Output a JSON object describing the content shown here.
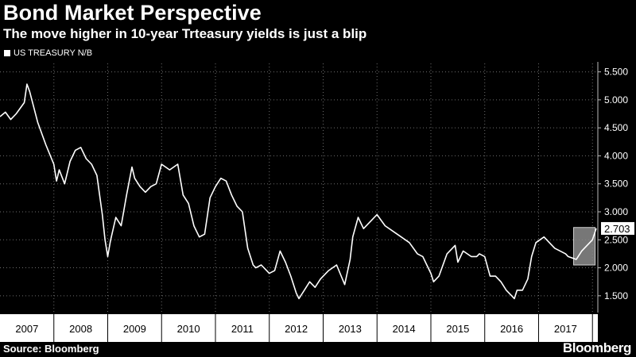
{
  "header": {
    "title": "Bond Market Perspective",
    "subtitle": "The move higher in 10-year Trteasury yields is just a blip"
  },
  "footer": {
    "source": "Source: Bloomberg",
    "brand": "Bloomberg"
  },
  "colors": {
    "background": "#000000",
    "line": "#ffffff",
    "axis_band": "#ffffff",
    "highlight_box": "#8c8c8c",
    "grid": "#6e6e6e"
  },
  "chart_data": {
    "type": "line",
    "title": "Bond Market Perspective",
    "subtitle": "The move higher in 10-year Trteasury yields is just a blip",
    "legend": [
      "US TREASURY N/B"
    ],
    "legend_position": "top-left",
    "y_axis_side": "right",
    "ylim": [
      1.2,
      5.65
    ],
    "yticks": [
      "1.500",
      "2.000",
      "2.500",
      "3.000",
      "3.500",
      "4.000",
      "4.500",
      "5.000",
      "5.500"
    ],
    "xlim": [
      2007.0,
      2018.1
    ],
    "x_tick_labels": [
      "2007",
      "2008",
      "2009",
      "2010",
      "2011",
      "2012",
      "2013",
      "2014",
      "2015",
      "2016",
      "2017"
    ],
    "grid": true,
    "last_value_label": "2.703",
    "highlight_region": {
      "x": [
        2017.65,
        2018.05
      ],
      "y": [
        2.05,
        2.72
      ]
    },
    "series": [
      {
        "name": "US TREASURY N/B",
        "x": [
          2007.0,
          2007.1,
          2007.2,
          2007.3,
          2007.45,
          2007.5,
          2007.55,
          2007.7,
          2007.85,
          2008.0,
          2008.05,
          2008.1,
          2008.2,
          2008.3,
          2008.4,
          2008.5,
          2008.6,
          2008.7,
          2008.8,
          2008.9,
          2008.95,
          2009.0,
          2009.05,
          2009.15,
          2009.25,
          2009.35,
          2009.45,
          2009.5,
          2009.6,
          2009.7,
          2009.8,
          2009.9,
          2010.0,
          2010.15,
          2010.3,
          2010.4,
          2010.5,
          2010.6,
          2010.7,
          2010.8,
          2010.9,
          2011.0,
          2011.1,
          2011.2,
          2011.3,
          2011.4,
          2011.5,
          2011.6,
          2011.7,
          2011.75,
          2011.85,
          2011.95,
          2012.0,
          2012.1,
          2012.2,
          2012.3,
          2012.4,
          2012.5,
          2012.55,
          2012.65,
          2012.75,
          2012.85,
          2012.95,
          2013.1,
          2013.25,
          2013.4,
          2013.5,
          2013.55,
          2013.65,
          2013.75,
          2013.85,
          2014.0,
          2014.15,
          2014.3,
          2014.45,
          2014.6,
          2014.75,
          2014.85,
          2014.9,
          2015.0,
          2015.05,
          2015.15,
          2015.3,
          2015.45,
          2015.5,
          2015.6,
          2015.75,
          2015.85,
          2015.9,
          2016.0,
          2016.1,
          2016.2,
          2016.3,
          2016.4,
          2016.5,
          2016.55,
          2016.6,
          2016.7,
          2016.8,
          2016.87,
          2016.95,
          2017.1,
          2017.2,
          2017.3,
          2017.4,
          2017.5,
          2017.55,
          2017.7,
          2017.8,
          2017.9,
          2018.0,
          2018.07
        ],
        "y": [
          4.7,
          4.78,
          4.65,
          4.75,
          4.95,
          5.28,
          5.15,
          4.6,
          4.2,
          3.85,
          3.55,
          3.75,
          3.5,
          3.9,
          4.1,
          4.15,
          3.95,
          3.85,
          3.65,
          2.95,
          2.5,
          2.2,
          2.48,
          2.9,
          2.75,
          3.3,
          3.8,
          3.6,
          3.45,
          3.35,
          3.45,
          3.5,
          3.85,
          3.75,
          3.85,
          3.3,
          3.15,
          2.75,
          2.55,
          2.6,
          3.25,
          3.45,
          3.6,
          3.55,
          3.3,
          3.1,
          3.0,
          2.35,
          2.05,
          2.0,
          2.05,
          1.95,
          1.9,
          1.95,
          2.3,
          2.1,
          1.85,
          1.55,
          1.45,
          1.6,
          1.75,
          1.65,
          1.8,
          1.95,
          2.05,
          1.7,
          2.15,
          2.55,
          2.9,
          2.7,
          2.8,
          2.95,
          2.75,
          2.65,
          2.55,
          2.45,
          2.25,
          2.2,
          2.1,
          1.9,
          1.75,
          1.85,
          2.25,
          2.4,
          2.1,
          2.3,
          2.2,
          2.2,
          2.25,
          2.2,
          1.85,
          1.85,
          1.75,
          1.6,
          1.5,
          1.45,
          1.6,
          1.6,
          1.8,
          2.2,
          2.45,
          2.55,
          2.45,
          2.35,
          2.3,
          2.25,
          2.2,
          2.15,
          2.3,
          2.4,
          2.5,
          2.703
        ]
      }
    ]
  }
}
